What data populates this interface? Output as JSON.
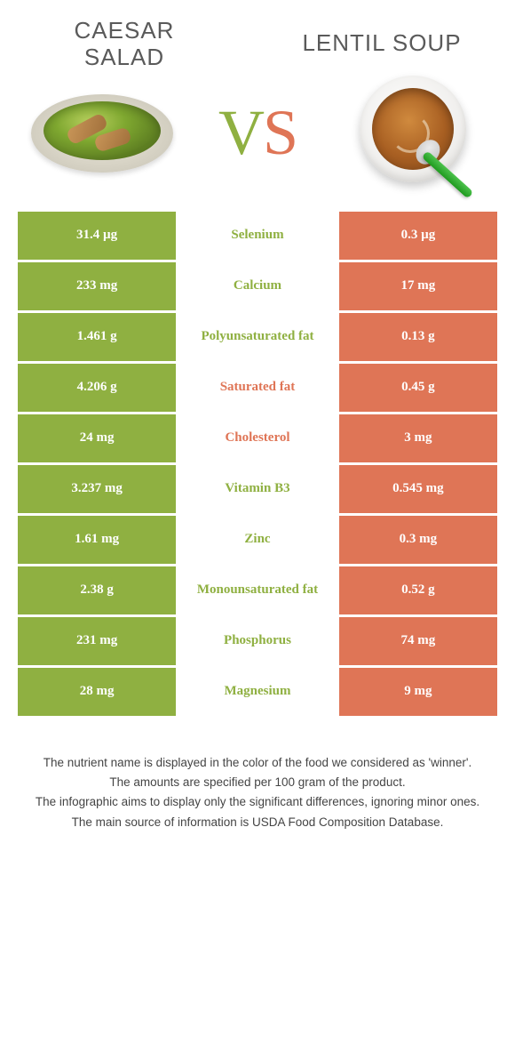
{
  "colors": {
    "left_bg": "#8fb041",
    "right_bg": "#df7556",
    "mid_bg": "#ffffff",
    "cell_text": "#ffffff",
    "header_text": "#5a5a5a",
    "footer_text": "#444444"
  },
  "header": {
    "left_title_line1": "Caesar",
    "left_title_line2": "salad",
    "right_title": "Lentil soup"
  },
  "vs": {
    "v": "V",
    "s": "S"
  },
  "rows": [
    {
      "left": "31.4 µg",
      "label": "Selenium",
      "right": "0.3 µg",
      "winner": "left"
    },
    {
      "left": "233 mg",
      "label": "Calcium",
      "right": "17 mg",
      "winner": "left"
    },
    {
      "left": "1.461 g",
      "label": "Polyunsaturated fat",
      "right": "0.13 g",
      "winner": "left"
    },
    {
      "left": "4.206 g",
      "label": "Saturated fat",
      "right": "0.45 g",
      "winner": "right"
    },
    {
      "left": "24 mg",
      "label": "Cholesterol",
      "right": "3 mg",
      "winner": "right"
    },
    {
      "left": "3.237 mg",
      "label": "Vitamin B3",
      "right": "0.545 mg",
      "winner": "left"
    },
    {
      "left": "1.61 mg",
      "label": "Zinc",
      "right": "0.3 mg",
      "winner": "left"
    },
    {
      "left": "2.38 g",
      "label": "Monounsaturated fat",
      "right": "0.52 g",
      "winner": "left"
    },
    {
      "left": "231 mg",
      "label": "Phosphorus",
      "right": "74 mg",
      "winner": "left"
    },
    {
      "left": "28 mg",
      "label": "Magnesium",
      "right": "9 mg",
      "winner": "left"
    }
  ],
  "footer": {
    "line1": "The nutrient name is displayed in the color of the food we considered as 'winner'.",
    "line2": "The amounts are specified per 100 gram of the product.",
    "line3": "The infographic aims to display only the significant differences, ignoring minor ones.",
    "line4": "The main source of information is USDA Food Composition Database."
  }
}
